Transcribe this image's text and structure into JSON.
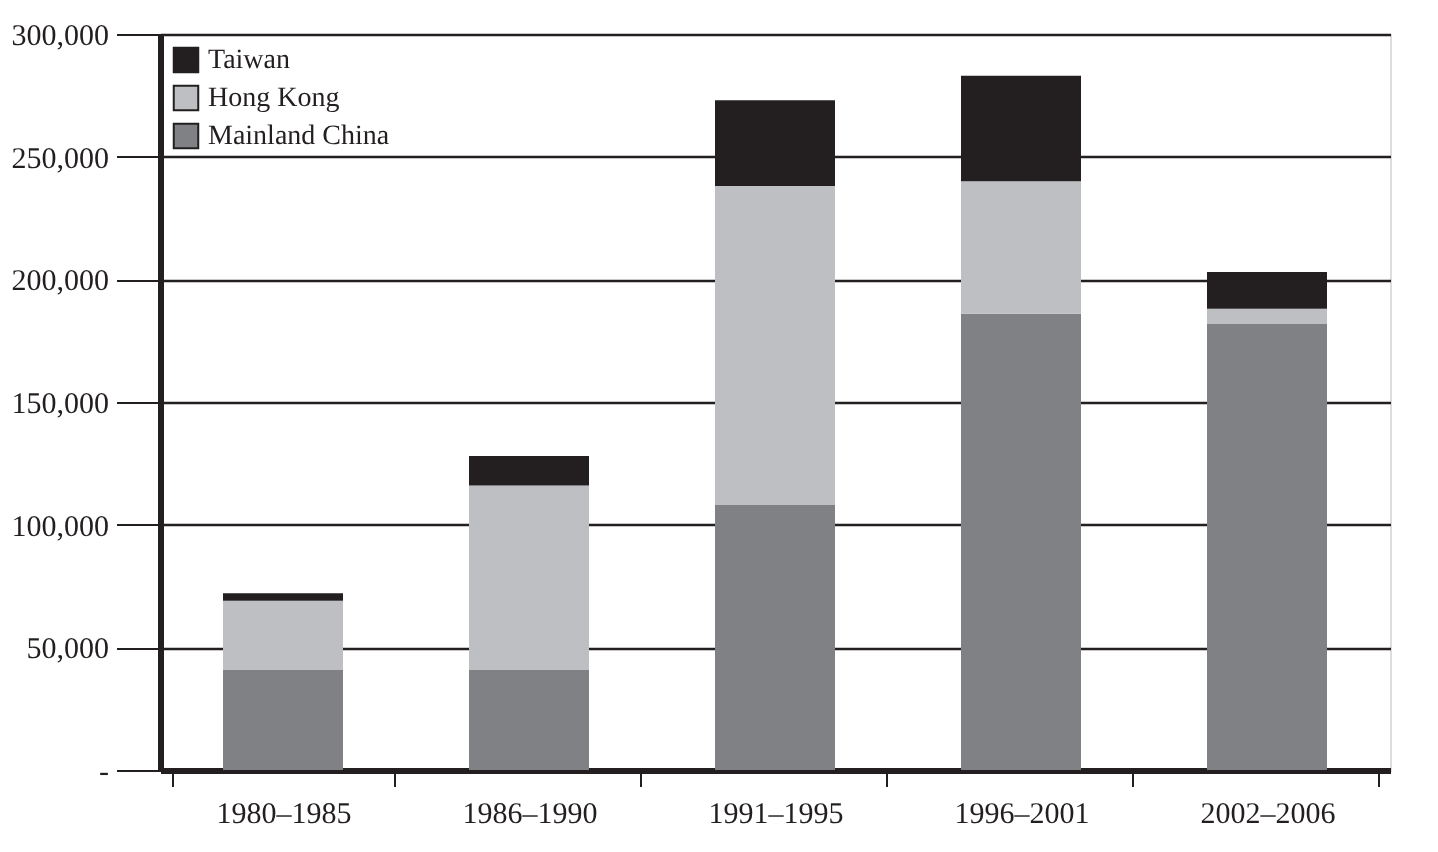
{
  "chart_data": {
    "type": "bar",
    "stacked": true,
    "categories": [
      "1980–1985",
      "1986–1990",
      "1991–1995",
      "1996–2001",
      "2002–2006"
    ],
    "series": [
      {
        "name": "Mainland China",
        "color": "#808184",
        "values": [
          41000,
          41000,
          108000,
          186000,
          182000
        ]
      },
      {
        "name": "Hong Kong",
        "color": "#bebfc2",
        "values": [
          28000,
          75000,
          130000,
          54000,
          6000
        ]
      },
      {
        "name": "Taiwan",
        "color": "#231f20",
        "values": [
          3000,
          12000,
          35000,
          43000,
          15000
        ]
      }
    ],
    "ylim": [
      0,
      300000
    ],
    "yticks": [
      {
        "value": 0,
        "label": "-"
      },
      {
        "value": 50000,
        "label": "50,000"
      },
      {
        "value": 100000,
        "label": "100,000"
      },
      {
        "value": 150000,
        "label": "150,000"
      },
      {
        "value": 200000,
        "label": "200,000"
      },
      {
        "value": 250000,
        "label": "250,000"
      },
      {
        "value": 300000,
        "label": "300,000"
      }
    ],
    "grid": "y",
    "legend": "top left"
  }
}
